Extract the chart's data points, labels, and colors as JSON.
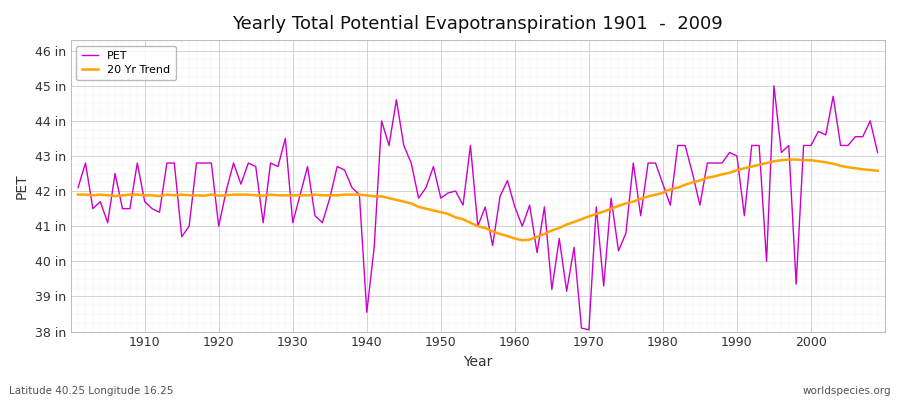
{
  "title": "Yearly Total Potential Evapotranspiration 1901  -  2009",
  "xlabel": "Year",
  "ylabel": "PET",
  "footnote_left": "Latitude 40.25 Longitude 16.25",
  "footnote_right": "worldspecies.org",
  "pet_color": "#CC00CC",
  "trend_color": "#FFA500",
  "bg_color": "#ffffff",
  "plot_bg_color": "#ffffff",
  "years": [
    1901,
    1902,
    1903,
    1904,
    1905,
    1906,
    1907,
    1908,
    1909,
    1910,
    1911,
    1912,
    1913,
    1914,
    1915,
    1916,
    1917,
    1918,
    1919,
    1920,
    1921,
    1922,
    1923,
    1924,
    1925,
    1926,
    1927,
    1928,
    1929,
    1930,
    1931,
    1932,
    1933,
    1934,
    1935,
    1936,
    1937,
    1938,
    1939,
    1940,
    1941,
    1942,
    1943,
    1944,
    1945,
    1946,
    1947,
    1948,
    1949,
    1950,
    1951,
    1952,
    1953,
    1954,
    1955,
    1956,
    1957,
    1958,
    1959,
    1960,
    1961,
    1962,
    1963,
    1964,
    1965,
    1966,
    1967,
    1968,
    1969,
    1970,
    1971,
    1972,
    1973,
    1974,
    1975,
    1976,
    1977,
    1978,
    1979,
    1980,
    1981,
    1982,
    1983,
    1984,
    1985,
    1986,
    1987,
    1988,
    1989,
    1990,
    1991,
    1992,
    1993,
    1994,
    1995,
    1996,
    1997,
    1998,
    1999,
    2000,
    2001,
    2002,
    2003,
    2004,
    2005,
    2006,
    2007,
    2008,
    2009
  ],
  "pet_values": [
    42.1,
    42.8,
    41.5,
    41.7,
    41.1,
    42.5,
    41.5,
    41.5,
    42.8,
    41.7,
    41.5,
    41.4,
    42.8,
    42.8,
    40.7,
    41.0,
    42.8,
    42.8,
    42.8,
    41.0,
    42.0,
    42.8,
    42.2,
    42.8,
    42.7,
    41.1,
    42.8,
    42.7,
    43.5,
    41.1,
    41.9,
    42.7,
    41.3,
    41.1,
    41.8,
    42.7,
    42.6,
    42.1,
    41.9,
    38.55,
    40.4,
    44.0,
    43.3,
    44.6,
    43.3,
    42.8,
    41.8,
    42.1,
    42.7,
    41.8,
    41.95,
    42.0,
    41.6,
    43.3,
    41.0,
    41.55,
    40.45,
    41.85,
    42.3,
    41.55,
    41.0,
    41.6,
    40.25,
    41.55,
    39.2,
    40.65,
    39.15,
    40.4,
    38.1,
    38.05,
    41.55,
    39.3,
    41.8,
    40.3,
    40.8,
    42.8,
    41.3,
    42.8,
    42.8,
    42.2,
    41.6,
    43.3,
    43.3,
    42.5,
    41.6,
    42.8,
    42.8,
    42.8,
    43.1,
    43.0,
    41.3,
    43.3,
    43.3,
    40.0,
    45.0,
    43.1,
    43.3,
    39.35,
    43.3,
    43.3,
    43.7,
    43.6,
    44.7,
    43.3,
    43.3,
    43.55,
    43.55,
    44.0,
    43.1
  ],
  "trend_values": [
    41.9,
    41.9,
    41.88,
    41.9,
    41.88,
    41.86,
    41.88,
    41.9,
    41.9,
    41.88,
    41.88,
    41.86,
    41.9,
    41.88,
    41.9,
    41.88,
    41.88,
    41.87,
    41.9,
    41.87,
    41.88,
    41.9,
    41.9,
    41.9,
    41.88,
    41.87,
    41.9,
    41.88,
    41.88,
    41.88,
    41.88,
    41.88,
    41.9,
    41.88,
    41.88,
    41.88,
    41.9,
    41.9,
    41.9,
    41.88,
    41.85,
    41.85,
    41.8,
    41.75,
    41.7,
    41.65,
    41.55,
    41.5,
    41.45,
    41.4,
    41.35,
    41.25,
    41.2,
    41.1,
    41.0,
    40.95,
    40.85,
    40.78,
    40.72,
    40.65,
    40.6,
    40.62,
    40.7,
    40.78,
    40.88,
    40.95,
    41.05,
    41.12,
    41.2,
    41.28,
    41.35,
    41.42,
    41.5,
    41.58,
    41.65,
    41.7,
    41.78,
    41.85,
    41.9,
    41.95,
    42.05,
    42.1,
    42.18,
    42.25,
    42.3,
    42.38,
    42.42,
    42.48,
    42.52,
    42.6,
    42.65,
    42.7,
    42.75,
    42.8,
    42.85,
    42.88,
    42.9,
    42.9,
    42.88,
    42.88,
    42.85,
    42.82,
    42.78,
    42.72,
    42.68,
    42.65,
    42.62,
    42.6,
    42.58
  ],
  "ylim": [
    38.0,
    46.3
  ],
  "yticks": [
    38,
    39,
    40,
    41,
    42,
    43,
    44,
    45,
    46
  ],
  "ytick_labels": [
    "38 in",
    "39 in",
    "40 in",
    "41 in",
    "42 in",
    "43 in",
    "44 in",
    "45 in",
    "46 in"
  ],
  "xlim": [
    1900,
    2010
  ],
  "xticks": [
    1910,
    1920,
    1930,
    1940,
    1950,
    1960,
    1970,
    1980,
    1990,
    2000
  ]
}
